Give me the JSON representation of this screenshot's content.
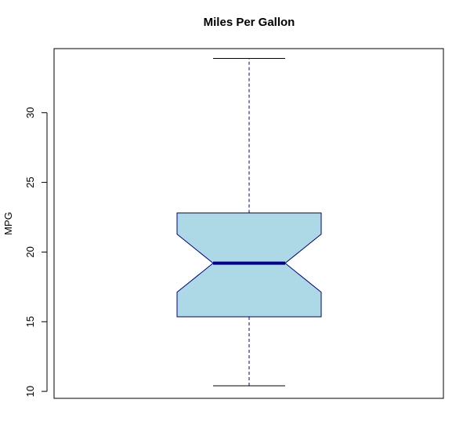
{
  "chart_data": {
    "type": "boxplot",
    "title": "Miles Per Gallon",
    "xlabel": "",
    "ylabel": "MPG",
    "ylim": [
      9.5,
      34.6
    ],
    "yticks": [
      10,
      15,
      20,
      25,
      30
    ],
    "notch": true,
    "grid": false,
    "legend": null,
    "colors": {
      "box_fill": "#add8e6",
      "box_border": "#00008b",
      "median": "#00008b",
      "whisker": "#00008b",
      "frame": "#000000"
    },
    "series": [
      {
        "values": {
          "min": 10.4,
          "q1": 15.35,
          "median": 19.2,
          "q3": 22.8,
          "max": 33.9,
          "notch_low": 17.12,
          "notch_high": 21.28
        }
      }
    ]
  }
}
